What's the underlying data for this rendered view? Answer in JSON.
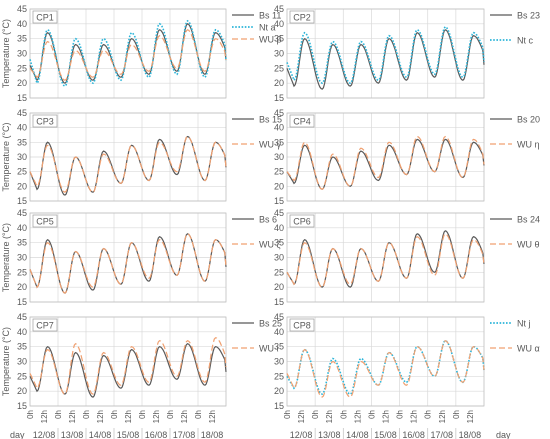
{
  "figure": {
    "y_axis_label": "Temperature (°C)",
    "x_axis_day_label": "day",
    "time_ticks": [
      "0h",
      "12h"
    ],
    "dates": [
      "12/08",
      "13/08",
      "14/08",
      "15/08",
      "16/08",
      "17/08",
      "18/08"
    ]
  },
  "colors": {
    "bs": "#595959",
    "nt": "#2CB5D9",
    "wu": "#F0A070"
  },
  "chart_data": [
    {
      "type": "line",
      "panel": "CP1",
      "ylim": [
        15,
        45
      ],
      "yticks": [
        15,
        20,
        25,
        30,
        35,
        40,
        45
      ],
      "xlim_hours": [
        0,
        168
      ],
      "grid": true,
      "series": [
        {
          "name": "Bs 11",
          "style": "solid",
          "min": [
            21,
            20,
            21,
            22,
            23,
            24,
            23
          ],
          "max": [
            37,
            33,
            33,
            35,
            38,
            40,
            37
          ],
          "start": 26,
          "end": 28
        },
        {
          "name": "Nt a",
          "style": "dotted",
          "min": [
            20,
            19,
            20,
            21,
            22,
            23,
            22
          ],
          "max": [
            38,
            35,
            35,
            37,
            40,
            41,
            38
          ],
          "start": 28,
          "end": 29
        },
        {
          "name": "WU β",
          "style": "dashed",
          "min": [
            22,
            21,
            22,
            23,
            24,
            25,
            24
          ],
          "max": [
            34,
            31,
            31,
            33,
            36,
            38,
            35
          ],
          "start": 25,
          "end": 27
        }
      ]
    },
    {
      "type": "line",
      "panel": "CP2",
      "ylim": [
        15,
        45
      ],
      "yticks": [
        15,
        20,
        25,
        30,
        35,
        40,
        45
      ],
      "xlim_hours": [
        0,
        168
      ],
      "grid": true,
      "series": [
        {
          "name": "Bs 23",
          "style": "solid",
          "min": [
            19,
            18,
            19,
            20,
            21,
            22,
            21
          ],
          "max": [
            35,
            33,
            33,
            35,
            37,
            38,
            36
          ],
          "start": 25,
          "end": 27
        },
        {
          "name": "Nt c",
          "style": "dotted",
          "min": [
            21,
            20,
            20,
            21,
            22,
            23,
            22
          ],
          "max": [
            37,
            34,
            34,
            36,
            38,
            39,
            37
          ],
          "start": 27,
          "end": 28
        }
      ]
    },
    {
      "type": "line",
      "panel": "CP3",
      "ylim": [
        15,
        45
      ],
      "yticks": [
        15,
        20,
        25,
        30,
        35,
        40,
        45
      ],
      "xlim_hours": [
        0,
        168
      ],
      "grid": true,
      "series": [
        {
          "name": "Bs 15",
          "style": "solid",
          "min": [
            19,
            17,
            18,
            21,
            22,
            24,
            22
          ],
          "max": [
            35,
            30,
            32,
            34,
            36,
            37,
            35
          ],
          "start": 25,
          "end": 27
        },
        {
          "name": "WU γ",
          "style": "dashed",
          "min": [
            20,
            18,
            18,
            21,
            22,
            25,
            22
          ],
          "max": [
            34,
            30,
            31,
            34,
            35,
            37,
            35
          ],
          "start": 25,
          "end": 27
        }
      ]
    },
    {
      "type": "line",
      "panel": "CP4",
      "ylim": [
        15,
        45
      ],
      "yticks": [
        15,
        20,
        25,
        30,
        35,
        40,
        45
      ],
      "xlim_hours": [
        0,
        168
      ],
      "grid": true,
      "series": [
        {
          "name": "Bs 20",
          "style": "solid",
          "min": [
            21,
            19,
            20,
            22,
            24,
            25,
            23
          ],
          "max": [
            34,
            30,
            32,
            34,
            36,
            36,
            35
          ],
          "start": 25,
          "end": 27
        },
        {
          "name": "WU η",
          "style": "dashed",
          "min": [
            22,
            19,
            20,
            23,
            24,
            25,
            23
          ],
          "max": [
            35,
            31,
            33,
            35,
            37,
            37,
            36
          ],
          "start": 25,
          "end": 27
        }
      ]
    },
    {
      "type": "line",
      "panel": "CP5",
      "ylim": [
        15,
        45
      ],
      "yticks": [
        15,
        20,
        25,
        30,
        35,
        40,
        45
      ],
      "xlim_hours": [
        0,
        168
      ],
      "grid": true,
      "series": [
        {
          "name": "Bs 6",
          "style": "solid",
          "min": [
            20,
            18,
            19,
            21,
            22,
            24,
            22
          ],
          "max": [
            36,
            32,
            33,
            35,
            37,
            38,
            36
          ],
          "start": 26,
          "end": 28
        },
        {
          "name": "WU ζ",
          "style": "dashed",
          "min": [
            20,
            18,
            20,
            21,
            23,
            24,
            22
          ],
          "max": [
            35,
            32,
            33,
            35,
            36,
            38,
            36
          ],
          "start": 26,
          "end": 28
        }
      ]
    },
    {
      "type": "line",
      "panel": "CP6",
      "ylim": [
        15,
        45
      ],
      "yticks": [
        15,
        20,
        25,
        30,
        35,
        40,
        45
      ],
      "xlim_hours": [
        0,
        168
      ],
      "grid": true,
      "series": [
        {
          "name": "Bs 24",
          "style": "solid",
          "min": [
            21,
            20,
            20,
            22,
            23,
            25,
            23
          ],
          "max": [
            36,
            33,
            33,
            35,
            38,
            39,
            37
          ],
          "start": 25,
          "end": 27
        },
        {
          "name": "WU θ",
          "style": "dashed",
          "min": [
            21,
            20,
            21,
            22,
            23,
            24,
            23
          ],
          "max": [
            35,
            33,
            33,
            35,
            37,
            38,
            36
          ],
          "start": 25,
          "end": 27
        }
      ]
    },
    {
      "type": "line",
      "panel": "CP7",
      "ylim": [
        15,
        45
      ],
      "yticks": [
        15,
        20,
        25,
        30,
        35,
        40,
        45
      ],
      "xlim_hours": [
        0,
        168
      ],
      "grid": true,
      "series": [
        {
          "name": "Bs 25",
          "style": "solid",
          "min": [
            20,
            19,
            18,
            21,
            22,
            24,
            22
          ],
          "max": [
            35,
            33,
            32,
            34,
            35,
            36,
            35
          ],
          "start": 25,
          "end": 27
        },
        {
          "name": "WU ι",
          "style": "dashed",
          "min": [
            21,
            19,
            19,
            22,
            23,
            25,
            23
          ],
          "max": [
            34,
            36,
            33,
            35,
            37,
            37,
            38
          ],
          "start": 26,
          "end": 28
        }
      ]
    },
    {
      "type": "line",
      "panel": "CP8",
      "ylim": [
        15,
        45
      ],
      "yticks": [
        15,
        20,
        25,
        30,
        35,
        40,
        45
      ],
      "xlim_hours": [
        0,
        168
      ],
      "grid": true,
      "series": [
        {
          "name": "Nt j",
          "style": "dotted",
          "min": [
            21,
            19,
            19,
            22,
            23,
            25,
            23
          ],
          "max": [
            34,
            31,
            31,
            33,
            35,
            37,
            35
          ],
          "start": 25,
          "end": 28
        },
        {
          "name": "WU α",
          "style": "dashed",
          "min": [
            21,
            18,
            18,
            22,
            22,
            25,
            23
          ],
          "max": [
            34,
            30,
            30,
            33,
            35,
            37,
            35
          ],
          "start": 26,
          "end": 28
        }
      ]
    }
  ]
}
